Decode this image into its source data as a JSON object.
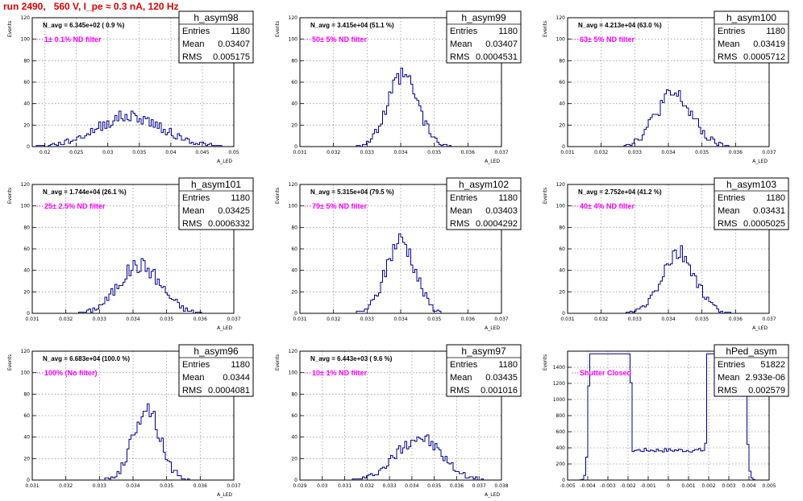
{
  "header": {
    "title": "run 2490,   560 V, I_pe ≈ 0.3 nA, 120 Hz"
  },
  "y_axis_title": "Events",
  "stats_labels": {
    "entries": "Entries",
    "mean": "Mean",
    "rms": "RMS"
  },
  "chart_data": [
    {
      "type": "bar",
      "name": "h_asym98",
      "navg": "N_avg = 6.345e+02 ( 0.9 %)",
      "filter_label": "1± 0.1% ND filter",
      "entries": "1180",
      "mean": "0.03407",
      "rms": "0.005175",
      "xlabel": "A_LED",
      "xlim": [
        0.018,
        0.05
      ],
      "ylim": [
        0,
        120
      ],
      "xticks": [
        0.02,
        0.025,
        0.03,
        0.035,
        0.04,
        0.045,
        0.05
      ],
      "xtick_labels": [
        "0.02",
        "0.025",
        "0.03",
        "0.035",
        "0.04",
        "0.045",
        "0.05"
      ],
      "yticks": [
        0,
        20,
        40,
        60,
        80,
        100,
        120
      ],
      "dist": [
        {
          "mu": 0.0335,
          "sigma": 0.0052,
          "w": 1
        }
      ],
      "peak": 28,
      "noise": 6,
      "seed": 98
    },
    {
      "type": "bar",
      "name": "h_asym99",
      "navg": "N_avg = 3.415e+04 (51.1 %)",
      "filter_label": "50± 5% ND filter",
      "entries": "1180",
      "mean": "0.03407",
      "rms": "0.0004531",
      "xlabel": "A_LED",
      "xlim": [
        0.031,
        0.037
      ],
      "ylim": [
        0,
        120
      ],
      "xticks": [
        0.031,
        0.032,
        0.033,
        0.034,
        0.035,
        0.036,
        0.037
      ],
      "xtick_labels": [
        "0.031",
        "0.032",
        "0.033",
        "0.034",
        "0.035",
        "0.036",
        "0.037"
      ],
      "yticks": [
        0,
        20,
        40,
        60,
        80,
        100,
        120
      ],
      "dist": [
        {
          "mu": 0.03407,
          "sigma": 0.00045,
          "w": 1
        }
      ],
      "peak": 65,
      "noise": 10,
      "seed": 99
    },
    {
      "type": "bar",
      "name": "h_asym100",
      "navg": "N_avg = 4.213e+04 (63.0 %)",
      "filter_label": "63± 5% ND filter",
      "entries": "1180",
      "mean": "0.03419",
      "rms": "0.0005712",
      "xlabel": "A_LED",
      "xlim": [
        0.031,
        0.037
      ],
      "ylim": [
        0,
        120
      ],
      "xticks": [
        0.031,
        0.032,
        0.033,
        0.034,
        0.035,
        0.036,
        0.037
      ],
      "xtick_labels": [
        "0.031",
        "0.032",
        "0.033",
        "0.034",
        "0.035",
        "0.036",
        "0.037"
      ],
      "yticks": [
        0,
        20,
        40,
        60,
        80,
        100,
        120
      ],
      "dist": [
        {
          "mu": 0.03415,
          "sigma": 0.00055,
          "w": 1
        }
      ],
      "peak": 48,
      "noise": 9,
      "seed": 100
    },
    {
      "type": "bar",
      "name": "h_asym101",
      "navg": "N_avg = 1.744e+04 (26.1 %)",
      "filter_label": "25± 2.5% ND filter",
      "entries": "1180",
      "mean": "0.03425",
      "rms": "0.0006332",
      "xlabel": "A_LED",
      "xlim": [
        0.031,
        0.037
      ],
      "ylim": [
        0,
        120
      ],
      "xticks": [
        0.031,
        0.032,
        0.033,
        0.034,
        0.035,
        0.036,
        0.037
      ],
      "xtick_labels": [
        "0.031",
        "0.032",
        "0.033",
        "0.034",
        "0.035",
        "0.036",
        "0.037"
      ],
      "yticks": [
        0,
        20,
        40,
        60,
        80,
        100,
        120
      ],
      "dist": [
        {
          "mu": 0.0342,
          "sigma": 0.00062,
          "w": 1
        }
      ],
      "peak": 45,
      "noise": 8,
      "seed": 101
    },
    {
      "type": "bar",
      "name": "h_asym102",
      "navg": "N_avg = 5.315e+04 (79.5 %)",
      "filter_label": "79± 5% ND filter",
      "entries": "1180",
      "mean": "0.03403",
      "rms": "0.0004292",
      "xlabel": "A_LED",
      "xlim": [
        0.031,
        0.037
      ],
      "ylim": [
        0,
        120
      ],
      "xticks": [
        0.031,
        0.032,
        0.033,
        0.034,
        0.035,
        0.036,
        0.037
      ],
      "xtick_labels": [
        "0.031",
        "0.032",
        "0.033",
        "0.034",
        "0.035",
        "0.036",
        "0.037"
      ],
      "yticks": [
        0,
        20,
        40,
        60,
        80,
        100,
        120
      ],
      "dist": [
        {
          "mu": 0.034,
          "sigma": 0.00043,
          "w": 1
        }
      ],
      "peak": 68,
      "noise": 10,
      "seed": 102
    },
    {
      "type": "bar",
      "name": "h_asym103",
      "navg": "N_avg = 2.752e+04 (41.2 %)",
      "filter_label": "40± 4% ND filter",
      "entries": "1180",
      "mean": "0.03431",
      "rms": "0.0005025",
      "xlabel": "A_LED",
      "xlim": [
        0.031,
        0.037
      ],
      "ylim": [
        0,
        120
      ],
      "xticks": [
        0.031,
        0.032,
        0.033,
        0.034,
        0.035,
        0.036,
        0.037
      ],
      "xtick_labels": [
        "0.031",
        "0.032",
        "0.033",
        "0.034",
        "0.035",
        "0.036",
        "0.037"
      ],
      "yticks": [
        0,
        20,
        40,
        60,
        80,
        100,
        120
      ],
      "dist": [
        {
          "mu": 0.0343,
          "sigma": 0.0005,
          "w": 1
        }
      ],
      "peak": 55,
      "noise": 9,
      "seed": 103
    },
    {
      "type": "bar",
      "name": "h_asym96",
      "navg": "N_avg = 6.683e+04 (100.0 %)",
      "filter_label": "100% (No filter)",
      "entries": "1180",
      "mean": "0.0344",
      "rms": "0.0004081",
      "xlabel": "A_LED",
      "xlim": [
        0.031,
        0.037
      ],
      "ylim": [
        0,
        120
      ],
      "xticks": [
        0.031,
        0.032,
        0.033,
        0.034,
        0.035,
        0.036,
        0.037
      ],
      "xtick_labels": [
        "0.031",
        "0.032",
        "0.033",
        "0.034",
        "0.035",
        "0.036",
        "0.037"
      ],
      "yticks": [
        0,
        20,
        40,
        60,
        80,
        100,
        120
      ],
      "dist": [
        {
          "mu": 0.0344,
          "sigma": 0.0004,
          "w": 1
        }
      ],
      "peak": 68,
      "noise": 10,
      "seed": 96
    },
    {
      "type": "bar",
      "name": "h_asym97",
      "navg": "N_avg = 6.443e+03 ( 9.6 %)",
      "filter_label": "10± 1% ND filter",
      "entries": "1180",
      "mean": "0.03435",
      "rms": "0.001016",
      "xlabel": "A_LED",
      "xlim": [
        0.029,
        0.038
      ],
      "ylim": [
        0,
        120
      ],
      "xticks": [
        0.029,
        0.03,
        0.031,
        0.032,
        0.033,
        0.034,
        0.035,
        0.036,
        0.037,
        0.038
      ],
      "xtick_labels": [
        "0.029",
        "0.03",
        "0.031",
        "0.032",
        "0.033",
        "0.034",
        "0.035",
        "0.036",
        "0.037",
        "0.038"
      ],
      "yticks": [
        0,
        20,
        40,
        60,
        80,
        100,
        120
      ],
      "dist": [
        {
          "mu": 0.0343,
          "sigma": 0.001,
          "w": 1
        }
      ],
      "peak": 40,
      "noise": 7,
      "seed": 97
    },
    {
      "type": "bar",
      "name": "hPed_asym",
      "navg": "",
      "filter_label": "Shutter Closed",
      "entries": "51822",
      "mean": "2.933e-06",
      "rms": "0.002579",
      "xlabel": "",
      "xlim": [
        -0.005,
        0.005
      ],
      "ylim": [
        0,
        1600
      ],
      "xticks": [
        -0.005,
        -0.004,
        -0.003,
        -0.002,
        -0.001,
        0,
        0.001,
        0.002,
        0.003,
        0.004,
        0.005
      ],
      "xtick_labels": [
        "-0.005",
        "-0.004",
        "-0.003",
        "-0.002",
        "-0.001",
        "0",
        "0.001",
        "0.002",
        "0.003",
        "0.004",
        "0.005"
      ],
      "yticks": [
        0,
        200,
        400,
        600,
        800,
        1000,
        1200,
        1400
      ],
      "dist": [
        {
          "mu": -0.0029,
          "sigma": 0.00028,
          "w": 1150
        },
        {
          "mu": 0.0029,
          "sigma": 0.00028,
          "w": 720
        }
      ],
      "flat": 370,
      "flatlim": [
        -0.0027,
        0.0027
      ],
      "noise": 25,
      "seed": 7
    }
  ]
}
